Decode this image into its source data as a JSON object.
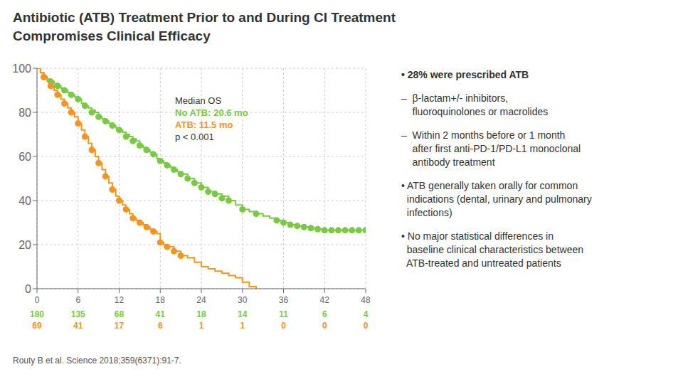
{
  "chart_data": {
    "type": "line",
    "title": "Antibiotic (ATB) Treatment Prior to and During CI Treatment\nCompromises Clinical Efficacy",
    "xlim": [
      0,
      48
    ],
    "ylim": [
      0,
      100
    ],
    "xticks": [
      0,
      6,
      12,
      18,
      24,
      30,
      36,
      42,
      48
    ],
    "yticks": [
      0,
      20,
      40,
      60,
      80,
      100
    ],
    "series": [
      {
        "type": "line",
        "line_style": "step",
        "color": "#7ac943",
        "x": [
          0,
          0.5,
          1,
          1.5,
          2,
          2.5,
          3,
          3.5,
          4,
          4.5,
          5,
          5.5,
          6,
          6.5,
          7,
          7.5,
          8,
          8.5,
          9,
          9.5,
          10,
          10.5,
          11,
          11.5,
          12,
          12.5,
          13,
          13.5,
          14,
          14.5,
          15,
          15.5,
          16,
          16.5,
          17,
          17.5,
          18,
          18.5,
          19,
          19.5,
          20,
          20.5,
          21,
          22,
          23,
          24,
          25,
          26,
          27,
          28,
          29,
          30,
          31,
          32,
          33,
          34,
          35,
          36,
          37,
          38,
          39,
          40,
          41,
          42,
          43,
          44,
          45,
          46,
          47,
          48
        ],
        "values": [
          100,
          98,
          96,
          95,
          94,
          93,
          92,
          91,
          90,
          89,
          88,
          87,
          86,
          84,
          83,
          82,
          81,
          80,
          78,
          77,
          76,
          75,
          74,
          73,
          72,
          71,
          70,
          69,
          68,
          67,
          65,
          64,
          63,
          62,
          61,
          59,
          58,
          57,
          56,
          55,
          54,
          53,
          52,
          50,
          48,
          46,
          44,
          43,
          42,
          40,
          38,
          36,
          35,
          34,
          33,
          32,
          31,
          30,
          29,
          28.5,
          28,
          27.5,
          27,
          26.5,
          26.5,
          26.5,
          26.5,
          26.5,
          26.5,
          26.5
        ],
        "at_risk": [
          180,
          135,
          68,
          41,
          18,
          14,
          11,
          6,
          4
        ]
      },
      {
        "type": "line",
        "line_style": "step",
        "color": "#f7941d",
        "x": [
          0,
          0.5,
          1,
          1.5,
          2,
          2.5,
          3,
          3.5,
          4,
          4.5,
          5,
          5.5,
          6,
          6.5,
          7,
          7.5,
          8,
          8.5,
          9,
          9.5,
          10,
          10.5,
          11,
          11.5,
          12,
          12.5,
          13,
          13.5,
          14,
          14.5,
          15,
          15.5,
          16,
          16.5,
          17,
          17.5,
          18,
          18.5,
          19,
          20,
          21,
          22,
          23,
          24,
          25,
          26,
          27,
          28,
          29,
          30,
          31,
          32
        ],
        "values": [
          100,
          98,
          96,
          94,
          92,
          90,
          88,
          86,
          84,
          82,
          80,
          78,
          75,
          72,
          69,
          66,
          63,
          60,
          57,
          54,
          51,
          48,
          45,
          42,
          40,
          38,
          36,
          34,
          32,
          31,
          30,
          29,
          28,
          27,
          26,
          25,
          21,
          20,
          19,
          17,
          15,
          14,
          12,
          10,
          9,
          8,
          7,
          6,
          5,
          3,
          1,
          0
        ],
        "at_risk": [
          69,
          41,
          17,
          6,
          1,
          1,
          0,
          0,
          0
        ]
      },
      {
        "type": "scatter",
        "marker": "o",
        "color": "#7ac943",
        "x": [
          1,
          2,
          3,
          4,
          5,
          6,
          7,
          8,
          9,
          10,
          11,
          12,
          13,
          14,
          15,
          16,
          17,
          18,
          19,
          20,
          21,
          22,
          23,
          24,
          25,
          26,
          27,
          28,
          30,
          32,
          35,
          36,
          37,
          38,
          39,
          40,
          41,
          42,
          43,
          44,
          45,
          46,
          47,
          48
        ],
        "values": [
          96,
          94,
          92,
          90,
          88,
          86,
          83,
          80,
          78,
          76,
          74,
          72,
          69,
          67,
          65,
          63,
          61,
          58,
          56,
          54,
          52,
          50,
          48,
          46,
          44,
          43,
          41,
          40,
          36,
          34,
          31,
          30,
          29,
          28.5,
          28,
          27.5,
          27,
          26.5,
          26.5,
          26.5,
          26.5,
          26.5,
          26.5,
          26.5
        ]
      },
      {
        "type": "scatter",
        "marker": "o",
        "color": "#f7941d",
        "x": [
          1,
          2,
          3,
          4,
          5,
          6,
          7,
          8,
          9,
          10,
          11,
          12,
          13,
          14,
          15,
          16,
          17,
          18,
          19,
          20,
          21
        ],
        "values": [
          96,
          92,
          88,
          84,
          80,
          75,
          69,
          63,
          57,
          51,
          45,
          40,
          36,
          32,
          30,
          28,
          26,
          21,
          19,
          17,
          15
        ]
      }
    ],
    "annotations": [
      {
        "text": "Median OS"
      },
      {
        "text": "No ATB: 20.6 mo",
        "color": "#7ac943"
      },
      {
        "text": "ATB: 11.5 mo",
        "color": "#f7941d"
      },
      {
        "text": "p < 0.001"
      }
    ],
    "notes": [
      "• 28% were prescribed ATB",
      "–  β-lactam+/- inhibitors,\n    fluoroquinolones or macrolides",
      "–  Within 2 months before or 1 month\n    after first anti-PD-1/PD-L1 monoclonal\n    antibody treatment",
      "• ATB generally taken orally for common\n  indications (dental, urinary and pulmonary\n  infections)",
      "• No major statistical differences in\n  baseline clinical characteristics between\n  ATB-treated and untreated patients"
    ],
    "footnote": "Routy B et al. Science 2018;359(6371):91-7."
  }
}
